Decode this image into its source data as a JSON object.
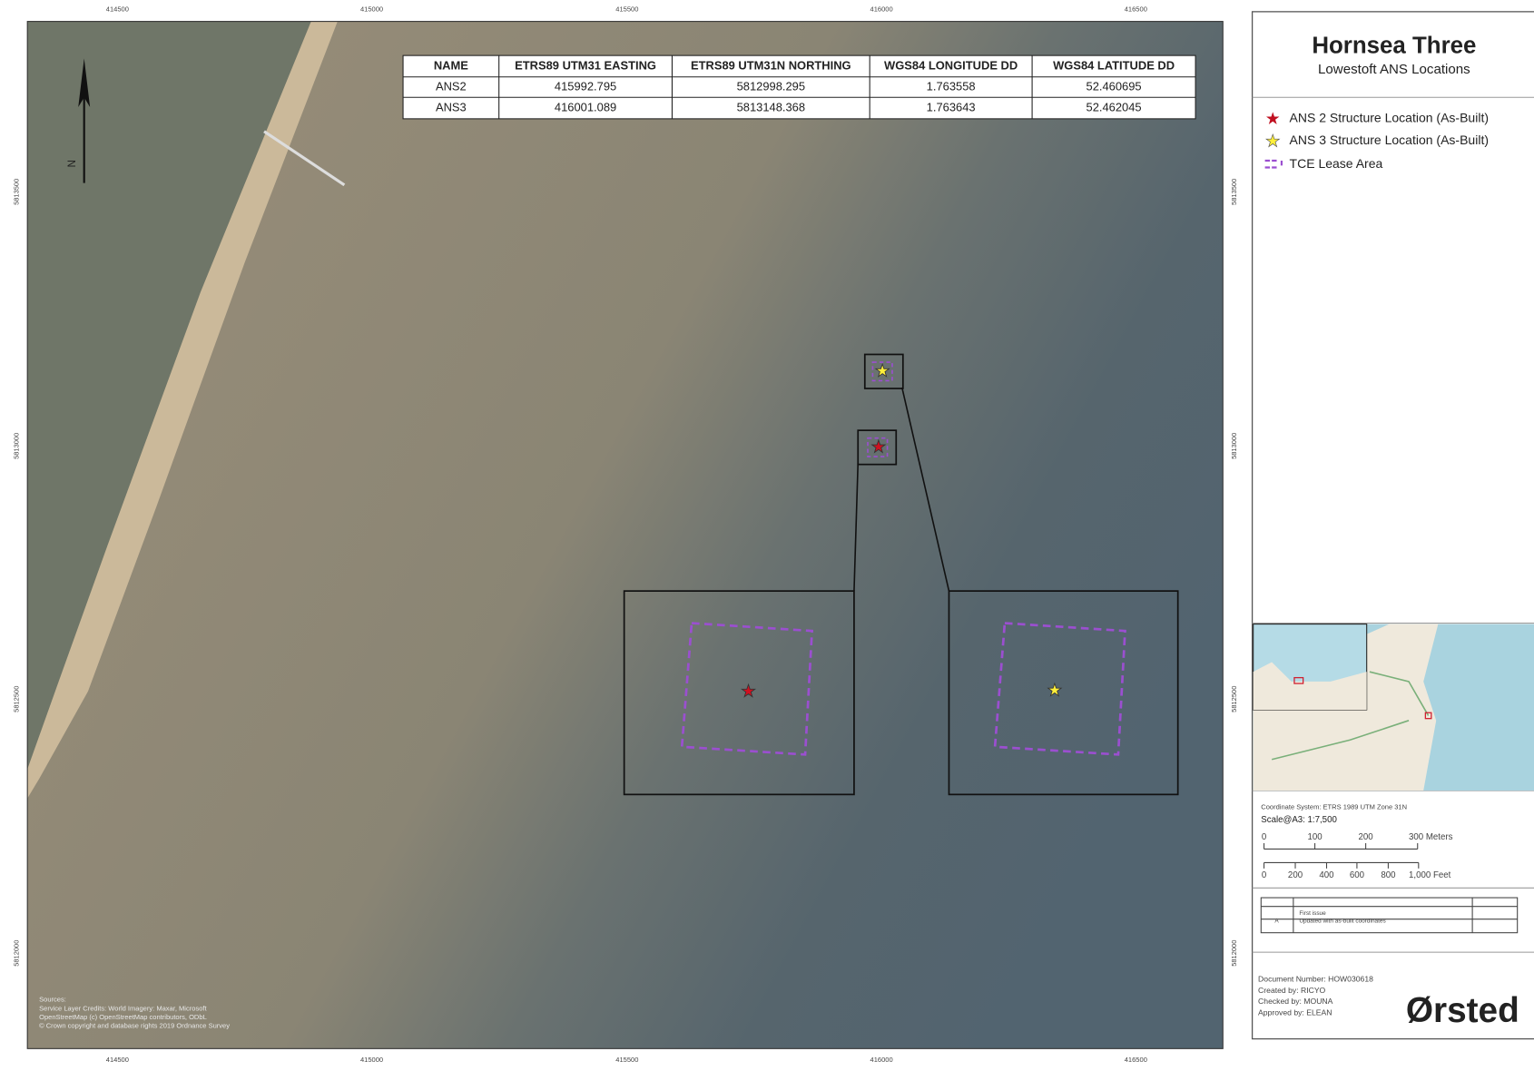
{
  "map": {
    "x_labels": [
      "414500",
      "415000",
      "415500",
      "416000",
      "416500"
    ],
    "y_labels": [
      "5813500",
      "5813000",
      "5812500",
      "5812000"
    ],
    "north": "N",
    "attribution": [
      "Sources:",
      "Service Layer Credits: World Imagery: Maxar, Microsoft",
      "OpenStreetMap (c) OpenStreetMap contributors, ODbL",
      "© Crown copyright and database rights 2019 Ordnance Survey"
    ]
  },
  "table": {
    "header": [
      "NAME",
      "ETRS89 UTM31 EASTING",
      "ETRS89 UTM31N NORTHING",
      "WGS84 LONGITUDE DD",
      "WGS84 LATITUDE DD"
    ],
    "rows": [
      [
        "ANS2",
        "415992.795",
        "5812998.295",
        "1.763558",
        "52.460695"
      ],
      [
        "ANS3",
        "416001.089",
        "5813148.368",
        "1.763643",
        "52.462045"
      ]
    ]
  },
  "panel": {
    "title": "Hornsea Three",
    "subtitle": "Lowestoft ANS Locations",
    "legend": [
      "ANS 2 Structure Location (As-Built)",
      "ANS 3 Structure Location (As-Built)",
      "TCE Lease Area"
    ],
    "coordinate_system": "Coordinate System: ETRS 1989 UTM Zone 31N",
    "scale": "Scale@A3: 1:7,500",
    "scale_meters": [
      "0",
      "100",
      "200",
      "300 Meters"
    ],
    "scale_feet": [
      "0",
      "200",
      "400",
      "600",
      "800",
      "1,000 Feet"
    ],
    "revisions": [
      {
        "description": "First issue"
      },
      {
        "rev": "A",
        "description": "Updated with as-built coordinates"
      }
    ],
    "document": [
      "Document Number: HOW030618",
      "Created by: RICYO",
      "Checked by: MOUNA",
      "Approved by: ELEAN"
    ],
    "logo": "Ørsted"
  }
}
